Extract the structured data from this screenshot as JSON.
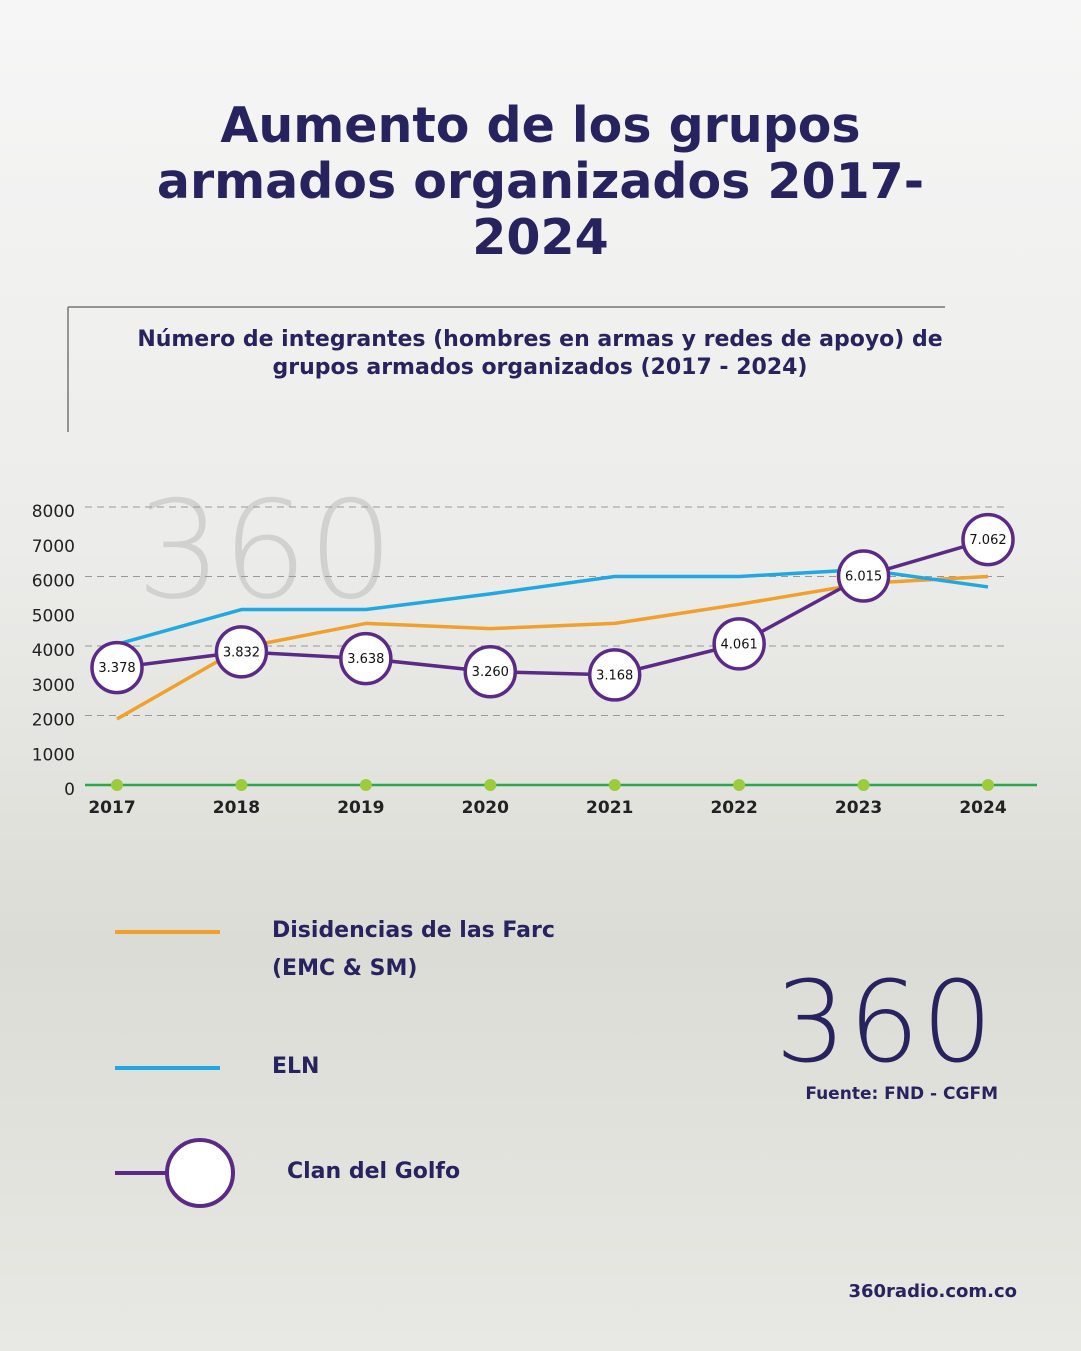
{
  "chart_data": {
    "type": "line",
    "title": "Aumento de los grupos armados organizados 2017-2024",
    "subtitle": "Número de integrantes (hombres en armas y redes de apoyo) de grupos armados organizados (2017 - 2024)",
    "categories": [
      "2017",
      "2018",
      "2019",
      "2020",
      "2021",
      "2022",
      "2023",
      "2024"
    ],
    "series": [
      {
        "name": "Disidencias de las Farc (EMC & SM)",
        "color": "#f0a02c",
        "values": [
          1900,
          3950,
          4650,
          4500,
          4650,
          5200,
          5800,
          6000
        ]
      },
      {
        "name": "ELN",
        "color": "#22a8e0",
        "values": [
          4050,
          5050,
          5050,
          5500,
          6000,
          6000,
          6200,
          5700
        ]
      },
      {
        "name": "Clan del Golfo",
        "color": "#5b2a86",
        "marker": "circle",
        "values": [
          3378,
          3832,
          3638,
          3260,
          3168,
          4061,
          6015,
          7062
        ],
        "value_labels": [
          "3.378",
          "3.832",
          "3.638",
          "3.260",
          "3.168",
          "4.061",
          "6.015",
          "7.062"
        ]
      }
    ],
    "ylim": [
      0,
      8000
    ],
    "yticks": [
      0,
      1000,
      2000,
      3000,
      4000,
      5000,
      6000,
      7000,
      8000
    ],
    "grid": true,
    "logo": "360",
    "source": "Fuente: FND - CGFM",
    "website": "360radio.com.co"
  }
}
